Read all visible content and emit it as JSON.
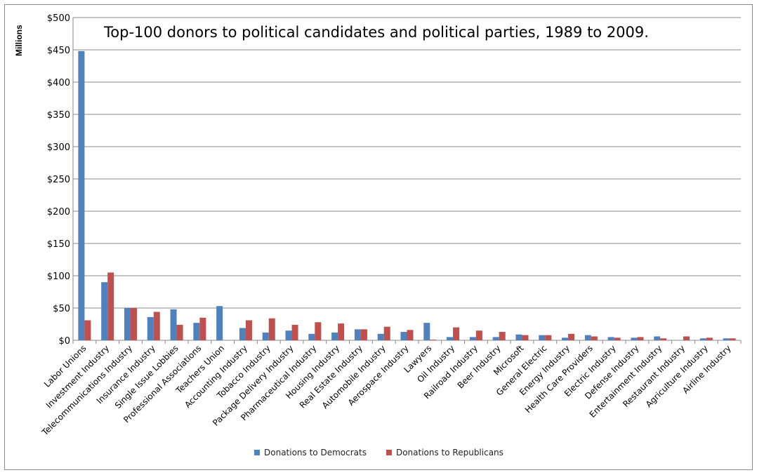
{
  "chart_data": {
    "type": "bar",
    "title": "Top-100 donors to political candidates and political parties, 1989 to 2009.",
    "ylabel": "Millions",
    "xlabel": "",
    "ylim": [
      0,
      500
    ],
    "yticks": [
      "$0",
      "$50",
      "$100",
      "$150",
      "$200",
      "$250",
      "$300",
      "$350",
      "$400",
      "$450",
      "$500"
    ],
    "ytick_values": [
      0,
      50,
      100,
      150,
      200,
      250,
      300,
      350,
      400,
      450,
      500
    ],
    "grid": true,
    "legend_position": "bottom",
    "categories": [
      "Labor Unions",
      "Investment Industry",
      "Telecommunications Industry",
      "Insurance Industry",
      "Single Issue Lobbies",
      "Professional Associations",
      "Teachers Union",
      "Accounting Industry",
      "Tobacco Industry",
      "Package Delivery Industry",
      "Pharmaceutical Industry",
      "Housing Industry",
      "Real Estate Industry",
      "Automobile Industry",
      "Aerospace Industry",
      "Lawyers",
      "Oil Industry",
      "Railroad Industry",
      "Beer Industry",
      "Microsoft",
      "General Electric",
      "Energy Industry",
      "Health Care Providers",
      "Electric Industry",
      "Defense Industry",
      "Entertainment Industry",
      "Restaurant Industry",
      "Agriculture Industry",
      "Airline Industry"
    ],
    "series": [
      {
        "name": "Donations to Democrats",
        "color": "#4f81bd",
        "values": [
          448,
          90,
          50,
          36,
          48,
          27,
          53,
          19,
          12,
          15,
          10,
          12,
          17,
          10,
          13,
          27,
          5,
          5,
          5,
          9,
          8,
          4,
          8,
          5,
          4,
          6,
          0,
          3,
          3
        ]
      },
      {
        "name": "Donations to Republicans",
        "color": "#c0504d",
        "values": [
          31,
          105,
          50,
          44,
          24,
          35,
          0,
          31,
          34,
          24,
          28,
          26,
          17,
          21,
          16,
          1,
          20,
          15,
          13,
          8,
          8,
          10,
          6,
          4,
          5,
          3,
          6,
          4,
          3
        ]
      }
    ]
  }
}
